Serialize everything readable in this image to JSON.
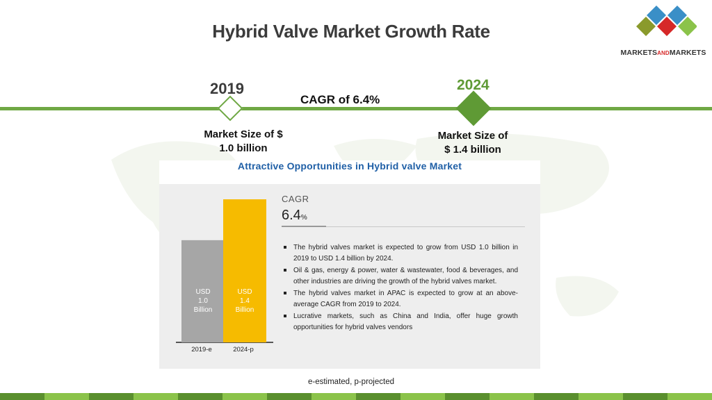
{
  "slide": {
    "title": "Hybrid Valve Market Growth Rate",
    "logo": {
      "text_main_1": "MARKETS",
      "text_and": "AND",
      "text_main_2": "MARKETS",
      "icon": "diamond-cluster-logo-icon"
    },
    "timeline": {
      "start_year": "2019",
      "end_year": "2024",
      "cagr_text": "CAGR of 6.4%",
      "start_size": [
        "Market Size of $",
        "1.0 billion"
      ],
      "end_size": [
        "Market Size of",
        "$ 1.4 billion"
      ]
    },
    "footnote": "e-estimated, p-projected",
    "colors": {
      "accent_green": "#6fa844",
      "dark_green": "#5f9a35",
      "title_blue": "#1f5fa6",
      "bar_2019": "#a6a6a6",
      "bar_2024": "#f6bb00",
      "strip_light": "#8bc34a",
      "strip_dark": "#5a8f2e"
    }
  },
  "panel": {
    "title": "Attractive Opportunities in Hybrid valve Market",
    "cagr_label": "CAGR",
    "cagr_value": "6.4",
    "cagr_unit": "%",
    "bullets": [
      "The hybrid valves market is expected to grow from USD 1.0 billion in 2019 to USD 1.4 billion by 2024.",
      "Oil & gas, energy & power, water & wastewater, food & beverages, and other industries are driving the growth of the hybrid valves market.",
      "The hybrid valves market in APAC is expected to grow at an above-average CAGR from 2019 to 2024.",
      "Lucrative markets, such as China and India, offer huge growth opportunities for hybrid valves vendors"
    ]
  },
  "chart_data": {
    "type": "bar",
    "categories": [
      "2019-e",
      "2024-p"
    ],
    "values": [
      1.0,
      1.4
    ],
    "bar_labels": [
      [
        "USD",
        "1.0",
        "Billion"
      ],
      [
        "USD",
        "1.4",
        "Billion"
      ]
    ],
    "colors": [
      "#a6a6a6",
      "#f6bb00"
    ],
    "unit": "USD Billion",
    "title": "",
    "xlabel": "",
    "ylabel": "",
    "ylim": [
      0,
      1.4
    ],
    "grid": false,
    "legend": "none"
  }
}
